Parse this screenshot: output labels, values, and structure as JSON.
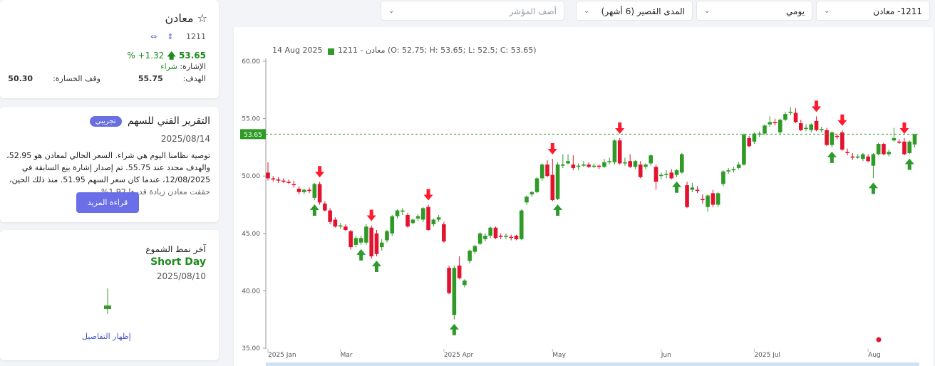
{
  "top_bar": {
    "symbol": "1211- معادن",
    "interval": "يومي",
    "range": "المدى القصير (6 أشهر)",
    "indicator_placeholder": "أضف المؤشر"
  },
  "stock_card": {
    "name": "معادن",
    "code": "1211",
    "price": "53.65",
    "change": "1.32+ %",
    "signal_label": "الإشارة:",
    "signal": "شراء",
    "target_label": "الهدف:",
    "target": "55.75",
    "stop_label": "وقف الخسارة:",
    "stop": "50.30"
  },
  "report_card": {
    "title": "التقرير الفني للسهم",
    "badge": "تجريبي",
    "date": "2025/08/14",
    "text": "توصية نظامنا اليوم هي شراء. السعر الحالي لمعادن هو 52.95، والهدف محدد عند 55.75. تم إصدار إشارة بيع السابقة في 12/08/2025، عندما كان سعر السهم 51.95. منذ ذلك الحين، حققت معادن زيادة قدرها 1.92%",
    "button": "قراءة المزيد"
  },
  "pattern_card": {
    "title": "آخر نمط الشموع",
    "pattern": "Short Day",
    "date": "2025/08/10",
    "link": "إظهار التفاصيل"
  },
  "chart_data": {
    "type": "candlestick",
    "legend_date": "14 Aug 2025",
    "legend_text": "1211 - معادن (O: 52.75; H: 53.65; L: 52.5; C: 53.65)",
    "up_color": "#2f9a26",
    "down_color": "#e3122e",
    "open": [
      50.3,
      49.8,
      49.7,
      49.6,
      49.5,
      49.3,
      48.9,
      48.6,
      48.8,
      48.1,
      49.3,
      47.6,
      47.0,
      46.2,
      45.6,
      45.6,
      45.2,
      44.0,
      44.2,
      44.2,
      45.5,
      45.0,
      43.8,
      44.4,
      45.0,
      46.5,
      46.9,
      46.6,
      45.9,
      46.3,
      46.2,
      47.3,
      45.8,
      46.2,
      45.8,
      42.0,
      37.9,
      42.2,
      40.5,
      42.6,
      43.4,
      44.1,
      44.5,
      44.8,
      45.5,
      44.8,
      44.7,
      44.7,
      44.8,
      44.5,
      47.7,
      48.4,
      48.6,
      49.8,
      51.0,
      50.1,
      48.0,
      50.9,
      51.1,
      51.0,
      50.8,
      50.9,
      51.0,
      50.8,
      50.9,
      50.8,
      51.2,
      51.2,
      53.1,
      51.1,
      51.3,
      50.8,
      51.0,
      50.8,
      51.1,
      50.8,
      50.0,
      50.1,
      50.3,
      50.1,
      50.3,
      49.2,
      48.8,
      48.8,
      48.0,
      47.3,
      48.5,
      47.5,
      49.3,
      50.4,
      50.5,
      50.7,
      51.0,
      53.3,
      53.0,
      53.6,
      53.7,
      54.5,
      54.7,
      53.8,
      54.9,
      55.5,
      55.5,
      54.6,
      54.1,
      54.0,
      54.8,
      54.0,
      54.0,
      52.7,
      53.5,
      53.8,
      52.1,
      51.7,
      51.6,
      51.5,
      51.7,
      50.9,
      51.9,
      52.8,
      51.9,
      53.1,
      53.0,
      53.0,
      52.0,
      52.75
    ],
    "high": [
      51.2,
      50.0,
      49.9,
      49.8,
      49.7,
      49.6,
      49.1,
      48.9,
      49.0,
      49.4,
      49.5,
      47.8,
      47.2,
      46.4,
      45.9,
      45.8,
      45.3,
      44.8,
      44.8,
      45.8,
      45.7,
      45.3,
      44.5,
      45.3,
      46.6,
      47.1,
      47.2,
      46.8,
      46.3,
      46.7,
      47.3,
      47.5,
      46.3,
      46.6,
      46.0,
      42.2,
      42.2,
      43.0,
      41.0,
      43.6,
      44.0,
      45.1,
      45.0,
      45.6,
      45.6,
      45.0,
      45.0,
      44.9,
      44.9,
      47.1,
      48.3,
      48.7,
      49.9,
      51.1,
      51.4,
      51.5,
      51.2,
      51.9,
      51.9,
      51.8,
      51.1,
      51.3,
      51.2,
      51.1,
      51.0,
      51.5,
      51.6,
      53.2,
      53.3,
      51.6,
      51.9,
      51.4,
      51.3,
      51.1,
      51.9,
      51.0,
      50.3,
      50.5,
      50.6,
      50.6,
      52.0,
      49.5,
      49.4,
      49.1,
      48.4,
      48.4,
      48.8,
      48.6,
      50.5,
      50.7,
      50.8,
      51.2,
      53.7,
      53.5,
      53.8,
      53.9,
      54.5,
      55.2,
      55.0,
      55.0,
      55.6,
      56.0,
      55.9,
      54.9,
      54.5,
      54.6,
      55.2,
      54.3,
      54.2,
      53.9,
      53.7,
      54.0,
      52.4,
      52.0,
      51.9,
      52.0,
      51.9,
      52.0,
      52.9,
      52.9,
      52.3,
      54.2,
      53.2,
      53.3,
      53.1,
      53.65
    ],
    "low": [
      49.6,
      49.5,
      49.4,
      49.4,
      49.3,
      49.0,
      48.4,
      48.4,
      48.5,
      47.9,
      47.5,
      46.9,
      45.8,
      45.5,
      45.4,
      45.2,
      43.6,
      43.8,
      44.0,
      44.0,
      42.8,
      43.0,
      43.5,
      44.2,
      44.8,
      46.3,
      46.6,
      45.5,
      45.8,
      46.1,
      46.0,
      45.2,
      45.6,
      46.0,
      44.2,
      39.7,
      37.5,
      41.0,
      40.3,
      42.4,
      43.2,
      44.0,
      44.3,
      44.6,
      44.5,
      44.5,
      44.5,
      44.4,
      44.4,
      44.4,
      47.5,
      48.2,
      48.5,
      49.6,
      49.9,
      47.8,
      47.9,
      50.7,
      51.0,
      50.5,
      50.5,
      50.8,
      50.7,
      50.7,
      50.6,
      50.7,
      51.0,
      51.0,
      51.0,
      50.9,
      50.7,
      50.6,
      49.8,
      50.6,
      50.9,
      48.8,
      49.7,
      49.8,
      49.7,
      49.9,
      50.2,
      47.2,
      48.6,
      48.5,
      47.6,
      46.9,
      47.3,
      47.3,
      49.1,
      50.2,
      50.3,
      50.6,
      50.9,
      52.5,
      52.8,
      53.4,
      53.6,
      54.3,
      54.4,
      53.6,
      54.8,
      55.3,
      54.6,
      53.9,
      53.9,
      53.8,
      53.9,
      53.8,
      52.6,
      52.5,
      53.2,
      52.2,
      51.8,
      51.4,
      51.5,
      51.3,
      51.2,
      49.8,
      51.8,
      51.8,
      51.7,
      53.0,
      52.8,
      51.8,
      51.9,
      52.5
    ],
    "close": [
      49.8,
      49.7,
      49.6,
      49.5,
      49.4,
      49.2,
      48.6,
      48.8,
      48.7,
      49.3,
      47.7,
      47.0,
      46.0,
      45.6,
      45.7,
      45.3,
      43.8,
      44.6,
      44.6,
      45.6,
      43.0,
      43.2,
      44.2,
      45.2,
      46.5,
      47.0,
      47.0,
      45.6,
      46.2,
      46.5,
      47.2,
      45.3,
      46.2,
      46.4,
      44.3,
      39.8,
      42.0,
      41.1,
      40.9,
      43.5,
      43.9,
      45.0,
      44.8,
      45.5,
      44.6,
      44.7,
      44.8,
      44.6,
      44.5,
      47.0,
      48.2,
      48.6,
      49.8,
      51.0,
      50.0,
      47.9,
      51.0,
      51.0,
      51.3,
      50.7,
      50.9,
      51.0,
      50.8,
      50.9,
      50.8,
      51.2,
      51.3,
      53.1,
      51.1,
      51.2,
      50.8,
      51.3,
      49.9,
      51.0,
      51.8,
      49.5,
      50.1,
      50.2,
      49.8,
      50.5,
      51.9,
      47.3,
      49.0,
      48.7,
      47.9,
      48.3,
      47.5,
      48.5,
      50.4,
      50.5,
      50.6,
      51.0,
      53.6,
      52.6,
      53.7,
      53.7,
      54.4,
      54.7,
      54.6,
      54.9,
      55.4,
      55.6,
      54.7,
      54.0,
      54.2,
      54.5,
      54.0,
      54.1,
      52.7,
      53.8,
      53.4,
      52.3,
      52.0,
      51.6,
      51.7,
      51.9,
      51.3,
      51.9,
      52.8,
      51.9,
      52.1,
      53.3,
      52.9,
      51.9,
      53.0,
      53.65
    ],
    "sell_signals": [
      10,
      20,
      31,
      55,
      68,
      106,
      111,
      123
    ],
    "buy_signals": [
      9,
      18,
      21,
      36,
      56,
      79,
      109,
      117,
      124
    ],
    "last_price": 53.65,
    "ylim": [
      35,
      60
    ],
    "yticks": [
      {
        "value": 35,
        "label": "35.00"
      },
      {
        "value": 40,
        "label": "40.00"
      },
      {
        "value": 45,
        "label": "45.00"
      },
      {
        "value": 50,
        "label": "50.00"
      },
      {
        "value": 55,
        "label": "55.00"
      },
      {
        "value": 60,
        "label": "60.00"
      }
    ],
    "xticks": [
      {
        "value": 0,
        "label": "2025 Jan"
      },
      {
        "value": 14,
        "label": "Mar"
      },
      {
        "value": 34,
        "label": "2025 Apr"
      },
      {
        "value": 55,
        "label": "May"
      },
      {
        "value": 76,
        "label": "Jun"
      },
      {
        "value": 94,
        "label": "2025 Jul"
      },
      {
        "value": 116,
        "label": "Aug"
      }
    ],
    "grid": false
  }
}
